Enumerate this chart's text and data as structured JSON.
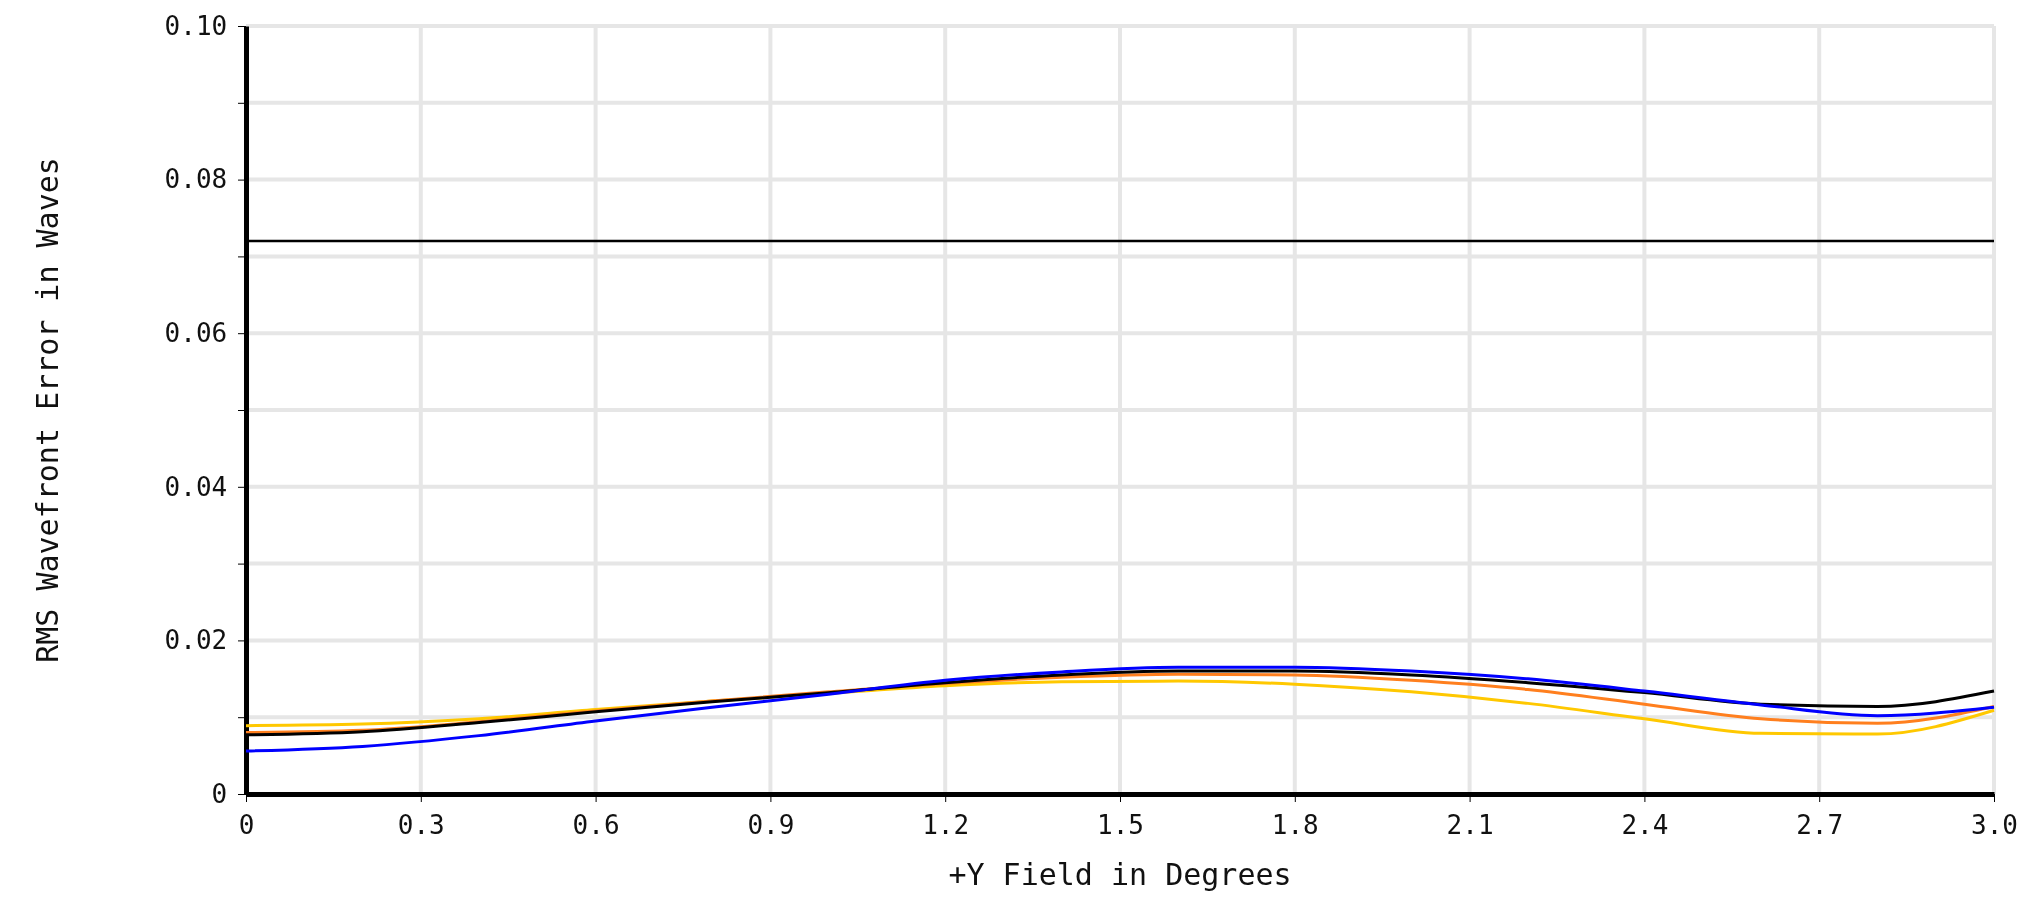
{
  "chart_data": {
    "type": "line",
    "xlabel": "+Y Field in Degrees",
    "ylabel": "RMS Wavefront Error in Waves",
    "x": [
      0,
      0.2,
      0.4,
      0.6,
      0.8,
      1.0,
      1.2,
      1.4,
      1.6,
      1.8,
      2.0,
      2.2,
      2.4,
      2.6,
      2.8,
      3.0
    ],
    "series": [
      {
        "color": "#ffc800",
        "values": [
          0.0089,
          0.0091,
          0.0098,
          0.011,
          0.0121,
          0.0131,
          0.0141,
          0.0146,
          0.0147,
          0.0143,
          0.0133,
          0.0118,
          0.0098,
          0.0079,
          0.0078,
          0.0109
        ]
      },
      {
        "color": "#ff7f1e",
        "values": [
          0.008,
          0.0083,
          0.0094,
          0.0108,
          0.0121,
          0.0133,
          0.0144,
          0.0152,
          0.0156,
          0.0155,
          0.0148,
          0.0136,
          0.0117,
          0.0098,
          0.0092,
          0.0114
        ]
      },
      {
        "color": "#000000",
        "values": [
          0.0077,
          0.0081,
          0.0093,
          0.0107,
          0.012,
          0.0132,
          0.0145,
          0.0155,
          0.016,
          0.016,
          0.0155,
          0.0145,
          0.0132,
          0.0117,
          0.0114,
          0.0134
        ]
      },
      {
        "color": "#0000ff",
        "values": [
          0.0056,
          0.0062,
          0.0076,
          0.0095,
          0.0113,
          0.013,
          0.0148,
          0.0159,
          0.0165,
          0.0165,
          0.016,
          0.015,
          0.0134,
          0.0116,
          0.0102,
          0.0113
        ]
      }
    ],
    "xlim": [
      0,
      3.0
    ],
    "xticks": [
      0,
      {
        "value": 0.3,
        "label": "0.3"
      },
      {
        "value": 0.6,
        "label": "0.6"
      },
      {
        "value": 0.9,
        "label": "0.9"
      },
      {
        "value": 1.2,
        "label": "1.2"
      },
      {
        "value": 1.5,
        "label": "1.5"
      },
      {
        "value": 1.8,
        "label": "1.8"
      },
      {
        "value": 2.1,
        "label": "2.1"
      },
      {
        "value": 2.4,
        "label": "2.4"
      },
      {
        "value": 2.7,
        "label": "2.7"
      },
      {
        "value": 3.0,
        "label": "3.0"
      }
    ],
    "ylim": [
      0,
      0.1
    ],
    "yticks": [
      0,
      {
        "value": 0.01,
        "label": null
      },
      {
        "value": 0.02,
        "label": "0.02"
      },
      {
        "value": 0.03,
        "label": null
      },
      {
        "value": 0.04,
        "label": "0.04"
      },
      {
        "value": 0.05,
        "label": null
      },
      {
        "value": 0.06,
        "label": "0.06"
      },
      {
        "value": 0.07,
        "label": null
      },
      {
        "value": 0.08,
        "label": "0.08"
      },
      {
        "value": 0.09,
        "label": null
      },
      {
        "value": 0.1,
        "label": "0.10"
      }
    ],
    "ref_lines": [
      {
        "axis": "y",
        "value": 0.072,
        "color": "#000000"
      }
    ],
    "grid": true,
    "marker": "none",
    "line_style": "solid"
  }
}
